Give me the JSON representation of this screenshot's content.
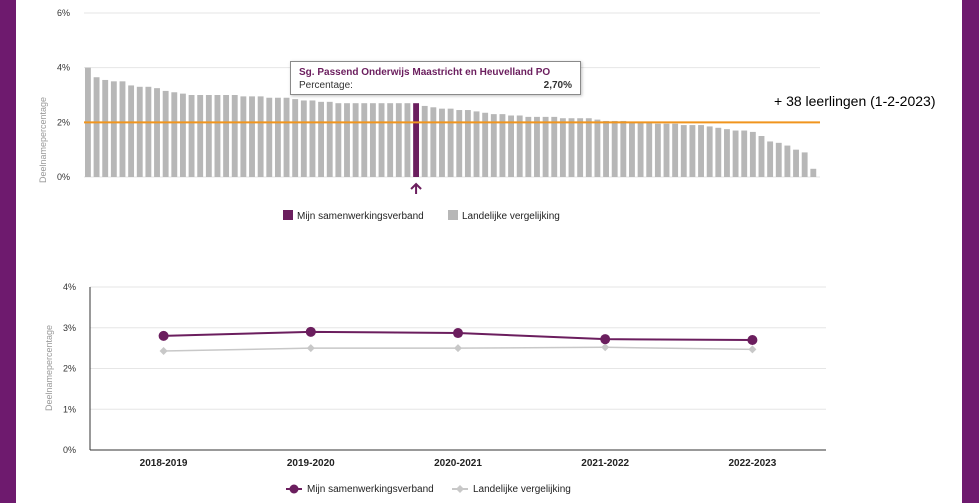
{
  "annotation": "+ 38 leerlingen (1-2-2023)",
  "tooltip": {
    "title": "Sg. Passend Onderwijs Maastricht en Heuvelland PO",
    "label": "Percentage:",
    "value": "2,70%"
  },
  "colors": {
    "highlight": "#6b1e5e",
    "comparison": "#b7b7b7",
    "reference_line": "#f0951e",
    "frame": "#6e1a6e"
  },
  "chart_data": [
    {
      "type": "bar",
      "ylabel": "Deelnamepercentage",
      "ylim": [
        0,
        6
      ],
      "yticks": [
        "0%",
        "2%",
        "4%",
        "6%"
      ],
      "grid": true,
      "legend_position": "bottom",
      "values": [
        4.0,
        3.65,
        3.55,
        3.5,
        3.5,
        3.35,
        3.3,
        3.3,
        3.25,
        3.15,
        3.1,
        3.05,
        3.0,
        3.0,
        3.0,
        3.0,
        3.0,
        3.0,
        2.95,
        2.95,
        2.95,
        2.9,
        2.9,
        2.9,
        2.85,
        2.8,
        2.8,
        2.75,
        2.75,
        2.7,
        2.7,
        2.7,
        2.7,
        2.7,
        2.7,
        2.7,
        2.7,
        2.7,
        2.7,
        2.6,
        2.55,
        2.5,
        2.5,
        2.45,
        2.45,
        2.4,
        2.35,
        2.3,
        2.3,
        2.25,
        2.25,
        2.2,
        2.2,
        2.2,
        2.2,
        2.15,
        2.15,
        2.15,
        2.15,
        2.1,
        2.05,
        2.05,
        2.05,
        2.0,
        2.0,
        2.0,
        1.95,
        1.95,
        1.95,
        1.9,
        1.9,
        1.9,
        1.85,
        1.8,
        1.75,
        1.7,
        1.7,
        1.65,
        1.5,
        1.3,
        1.25,
        1.15,
        1.0,
        0.9,
        0.3
      ],
      "highlight_index": 38,
      "reference_value": 2.0,
      "legend": [
        "Mijn samenwerkingsverband",
        "Landelijke vergelijking"
      ]
    },
    {
      "type": "line",
      "ylabel": "Deelnamepercentage",
      "ylim": [
        0,
        4
      ],
      "yticks": [
        "0%",
        "1%",
        "2%",
        "3%",
        "4%"
      ],
      "categories": [
        "2018-2019",
        "2019-2020",
        "2020-2021",
        "2021-2022",
        "2022-2023"
      ],
      "grid": true,
      "legend_position": "bottom",
      "series": [
        {
          "name": "Mijn samenwerkingsverband",
          "values": [
            2.8,
            2.9,
            2.87,
            2.72,
            2.7
          ],
          "color": "#6b1e5e"
        },
        {
          "name": "Landelijke vergelijking",
          "values": [
            2.43,
            2.5,
            2.5,
            2.52,
            2.47
          ],
          "color": "#c8c8c8"
        }
      ]
    }
  ]
}
